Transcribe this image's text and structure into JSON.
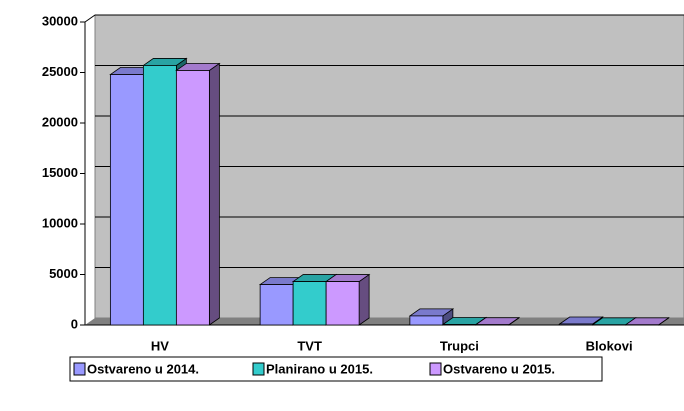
{
  "chart_data": {
    "type": "bar3d",
    "categories": [
      "HV",
      "TVT",
      "Trupci",
      "Blokovi"
    ],
    "series": [
      {
        "name": "Ostvareno u 2014.",
        "color": "#9999ff",
        "values": [
          24800,
          4000,
          900,
          100
        ]
      },
      {
        "name": "Planirano u 2015.",
        "color": "#33cccc",
        "values": [
          25700,
          4300,
          50,
          20
        ]
      },
      {
        "name": "Ostvareno u 2015.",
        "color": "#cc99ff",
        "values": [
          25200,
          4300,
          30,
          20
        ]
      }
    ],
    "ylim": [
      0,
      30000
    ],
    "yticks": [
      0,
      5000,
      10000,
      15000,
      20000,
      25000,
      30000
    ],
    "grid": true,
    "legend": "bottom"
  }
}
